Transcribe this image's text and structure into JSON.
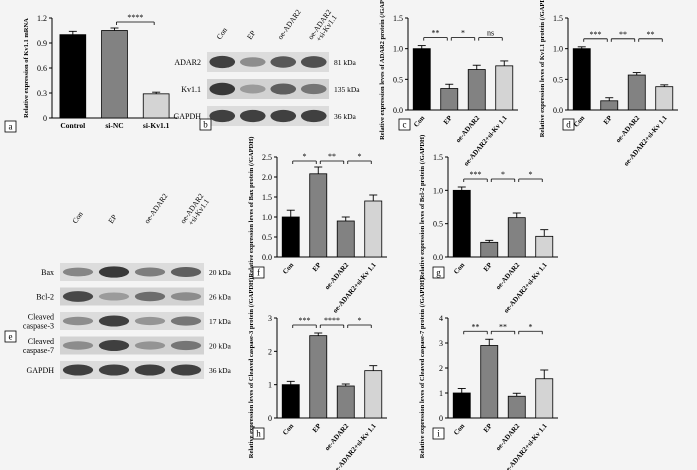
{
  "panels": {
    "a": {
      "label": "a",
      "type": "bar",
      "ylabel": "Relative expression of Kv1.1 mRNA",
      "categories": [
        "Control",
        "si-NC",
        "si-Kv1.1"
      ],
      "ylim": [
        0,
        1.2
      ],
      "yticks": [
        "0",
        "0.3",
        "0.6",
        "0.9",
        "1.2"
      ],
      "values": [
        1.0,
        1.05,
        0.29
      ],
      "errors": [
        0.04,
        0.03,
        0.02
      ],
      "colors": [
        "#000000",
        "#828282",
        "#d4d4d4"
      ],
      "sig": [
        {
          "from": 1,
          "to": 2,
          "text": "****"
        }
      ]
    },
    "c": {
      "label": "c",
      "type": "bar",
      "ylabel": "Relative expression leves of ADAR2 protein (/GAPDH)",
      "categories": [
        "Con",
        "EP",
        "oe-ADAR2",
        "oe-ADAR2+si-Kv 1.1"
      ],
      "ylim": [
        0,
        1.5
      ],
      "yticks": [
        "0.0",
        "0.5",
        "1.0",
        "1.5"
      ],
      "values": [
        1.0,
        0.35,
        0.66,
        0.72
      ],
      "errors": [
        0.05,
        0.07,
        0.07,
        0.08
      ],
      "colors": [
        "#000000",
        "#828282",
        "#828282",
        "#d4d4d4"
      ],
      "sig": [
        {
          "from": 0,
          "to": 1,
          "text": "**"
        },
        {
          "from": 1,
          "to": 2,
          "text": "*"
        },
        {
          "from": 2,
          "to": 3,
          "text": "ns"
        }
      ]
    },
    "d": {
      "label": "d",
      "type": "bar",
      "ylabel": "Relative expression leves of Kv1.1 protein (/GAPDH)",
      "categories": [
        "Con",
        "EP",
        "oe-ADAR2",
        "oe-ADAR2+si-Kv 1.1"
      ],
      "ylim": [
        0,
        1.5
      ],
      "yticks": [
        "0.0",
        "0.5",
        "1.0",
        "1.5"
      ],
      "values": [
        1.0,
        0.15,
        0.57,
        0.38
      ],
      "errors": [
        0.03,
        0.05,
        0.04,
        0.03
      ],
      "colors": [
        "#000000",
        "#828282",
        "#828282",
        "#d4d4d4"
      ],
      "sig": [
        {
          "from": 0,
          "to": 1,
          "text": "***"
        },
        {
          "from": 1,
          "to": 2,
          "text": "**"
        },
        {
          "from": 2,
          "to": 3,
          "text": "**"
        }
      ]
    },
    "f": {
      "label": "f",
      "type": "bar",
      "ylabel": "Relative expression leves of Bax protein (/GAPDH)",
      "categories": [
        "Con",
        "EP",
        "oe-ADAR2",
        "oe-ADAR2+si-Kv 1.1"
      ],
      "ylim": [
        0,
        2.5
      ],
      "yticks": [
        "0.0",
        "0.5",
        "1.0",
        "1.5",
        "2.0",
        "2.5"
      ],
      "values": [
        1.0,
        2.08,
        0.9,
        1.4
      ],
      "errors": [
        0.17,
        0.17,
        0.1,
        0.15
      ],
      "colors": [
        "#000000",
        "#828282",
        "#828282",
        "#d4d4d4"
      ],
      "sig": [
        {
          "from": 0,
          "to": 1,
          "text": "*"
        },
        {
          "from": 1,
          "to": 2,
          "text": "**"
        },
        {
          "from": 2,
          "to": 3,
          "text": "*"
        }
      ]
    },
    "g": {
      "label": "g",
      "type": "bar",
      "ylabel": "Relative expression leves of Bcl-2 protein (/GAPDH)",
      "categories": [
        "Con",
        "EP",
        "oe-ADAR2",
        "oe-ADAR2+si-Kv 1.1"
      ],
      "ylim": [
        0,
        1.5
      ],
      "yticks": [
        "0.0",
        "0.5",
        "1.0",
        "1.5"
      ],
      "values": [
        1.0,
        0.22,
        0.59,
        0.31
      ],
      "errors": [
        0.05,
        0.03,
        0.07,
        0.1
      ],
      "colors": [
        "#000000",
        "#828282",
        "#828282",
        "#d4d4d4"
      ],
      "sig": [
        {
          "from": 0,
          "to": 1,
          "text": "***"
        },
        {
          "from": 1,
          "to": 2,
          "text": "*"
        },
        {
          "from": 2,
          "to": 3,
          "text": "*"
        }
      ]
    },
    "h": {
      "label": "h",
      "type": "bar",
      "ylabel": "Relative expression leves of Cleaved caspase-3 protein (/GAPDH)",
      "categories": [
        "Con",
        "EP",
        "oe-ADAR2",
        "oe-ADAR2+si-Kv 1.1"
      ],
      "ylim": [
        0,
        3
      ],
      "yticks": [
        "0",
        "1",
        "2",
        "3"
      ],
      "values": [
        1.0,
        2.47,
        0.96,
        1.42
      ],
      "errors": [
        0.1,
        0.08,
        0.06,
        0.15
      ],
      "colors": [
        "#000000",
        "#828282",
        "#828282",
        "#d4d4d4"
      ],
      "sig": [
        {
          "from": 0,
          "to": 1,
          "text": "***"
        },
        {
          "from": 1,
          "to": 2,
          "text": "****"
        },
        {
          "from": 2,
          "to": 3,
          "text": "*"
        }
      ]
    },
    "i": {
      "label": "i",
      "type": "bar",
      "ylabel": "Relative expression leves of Cleaved caspase-7 protein (/GAPDH)",
      "categories": [
        "Con",
        "EP",
        "oe-ADAR2",
        "oe-ADAR2+si-Kv 1.1"
      ],
      "ylim": [
        0,
        4
      ],
      "yticks": [
        "0",
        "1",
        "2",
        "3",
        "4"
      ],
      "values": [
        1.0,
        2.9,
        0.87,
        1.57
      ],
      "errors": [
        0.18,
        0.25,
        0.12,
        0.35
      ],
      "colors": [
        "#000000",
        "#828282",
        "#828282",
        "#d4d4d4"
      ],
      "sig": [
        {
          "from": 0,
          "to": 1,
          "text": "**"
        },
        {
          "from": 1,
          "to": 2,
          "text": "**"
        },
        {
          "from": 2,
          "to": 3,
          "text": "*"
        }
      ]
    }
  },
  "blot_b": {
    "label": "b",
    "lanes": [
      "Con",
      "EP",
      "oe-ADAR2",
      "oe-ADAR2\n+si-Kv1.1"
    ],
    "rows": [
      {
        "name": "ADAR2",
        "size": "81 kDa",
        "intensity": [
          0.9,
          0.4,
          0.75,
          0.8
        ]
      },
      {
        "name": "Kv1.1",
        "size": "135 kDa",
        "intensity": [
          0.95,
          0.3,
          0.7,
          0.55
        ]
      },
      {
        "name": "GAPDH",
        "size": "36 kDa",
        "intensity": [
          0.9,
          0.9,
          0.9,
          0.9
        ]
      }
    ]
  },
  "blot_e": {
    "label": "e",
    "lanes": [
      "Con",
      "EP",
      "oe-ADAR2",
      "oe-ADAR2\n+si-Kv1.1"
    ],
    "rows": [
      {
        "name": "Bax",
        "size": "20 kDa",
        "intensity": [
          0.45,
          0.95,
          0.5,
          0.7
        ]
      },
      {
        "name": "Bcl-2",
        "size": "26 kDa",
        "intensity": [
          0.85,
          0.3,
          0.6,
          0.4
        ]
      },
      {
        "name": "Cleaved\ncaspase-3",
        "size": "17 kDa",
        "intensity": [
          0.4,
          0.9,
          0.35,
          0.55
        ]
      },
      {
        "name": "Cleaved\ncaspase-7",
        "size": "20 kDa",
        "intensity": [
          0.4,
          0.9,
          0.35,
          0.55
        ]
      },
      {
        "name": "GAPDH",
        "size": "36 kDa",
        "intensity": [
          0.9,
          0.9,
          0.9,
          0.9
        ]
      }
    ]
  },
  "chart_data": [
    {
      "type": "bar",
      "panel": "a",
      "categories": [
        "Control",
        "si-NC",
        "si-Kv1.1"
      ],
      "values": [
        1.0,
        1.05,
        0.29
      ],
      "ylabel": "Relative expression of Kv1.1 mRNA",
      "ylim": [
        0,
        1.2
      ]
    },
    {
      "type": "bar",
      "panel": "c",
      "categories": [
        "Con",
        "EP",
        "oe-ADAR2",
        "oe-ADAR2+si-Kv 1.1"
      ],
      "values": [
        1.0,
        0.35,
        0.66,
        0.72
      ],
      "ylabel": "Relative expression leves of ADAR2 protein (/GAPDH)",
      "ylim": [
        0,
        1.5
      ]
    },
    {
      "type": "bar",
      "panel": "d",
      "categories": [
        "Con",
        "EP",
        "oe-ADAR2",
        "oe-ADAR2+si-Kv 1.1"
      ],
      "values": [
        1.0,
        0.15,
        0.57,
        0.38
      ],
      "ylabel": "Relative expression leves of Kv1.1 protein (/GAPDH)",
      "ylim": [
        0,
        1.5
      ]
    },
    {
      "type": "bar",
      "panel": "f",
      "categories": [
        "Con",
        "EP",
        "oe-ADAR2",
        "oe-ADAR2+si-Kv 1.1"
      ],
      "values": [
        1.0,
        2.08,
        0.9,
        1.4
      ],
      "ylabel": "Relative expression leves of Bax protein (/GAPDH)",
      "ylim": [
        0,
        2.5
      ]
    },
    {
      "type": "bar",
      "panel": "g",
      "categories": [
        "Con",
        "EP",
        "oe-ADAR2",
        "oe-ADAR2+si-Kv 1.1"
      ],
      "values": [
        1.0,
        0.22,
        0.59,
        0.31
      ],
      "ylabel": "Relative expression leves of Bcl-2 protein (/GAPDH)",
      "ylim": [
        0,
        1.5
      ]
    },
    {
      "type": "bar",
      "panel": "h",
      "categories": [
        "Con",
        "EP",
        "oe-ADAR2",
        "oe-ADAR2+si-Kv 1.1"
      ],
      "values": [
        1.0,
        2.47,
        0.96,
        1.42
      ],
      "ylabel": "Relative expression leves of Cleaved caspase-3 protein (/GAPDH)",
      "ylim": [
        0,
        3
      ]
    },
    {
      "type": "bar",
      "panel": "i",
      "categories": [
        "Con",
        "EP",
        "oe-ADAR2",
        "oe-ADAR2+si-Kv 1.1"
      ],
      "values": [
        1.0,
        2.9,
        0.87,
        1.57
      ],
      "ylabel": "Relative expression leves of Cleaved caspase-7 protein (/GAPDH)",
      "ylim": [
        0,
        4
      ]
    }
  ]
}
